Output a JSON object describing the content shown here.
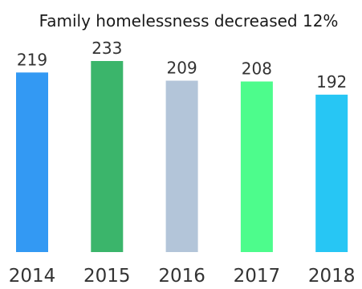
{
  "chart_data": {
    "type": "bar",
    "title": "Family homelessness decreased 12%",
    "categories": [
      "2014",
      "2015",
      "2016",
      "2017",
      "2018"
    ],
    "values": [
      219,
      233,
      209,
      208,
      192
    ],
    "colors": [
      "#3399f3",
      "#3bb56b",
      "#b3c5d9",
      "#4dfc8c",
      "#27c6f4"
    ],
    "xlabel": "",
    "ylabel": "",
    "ylim": [
      0,
      233
    ],
    "grid": false,
    "legend": "none"
  }
}
